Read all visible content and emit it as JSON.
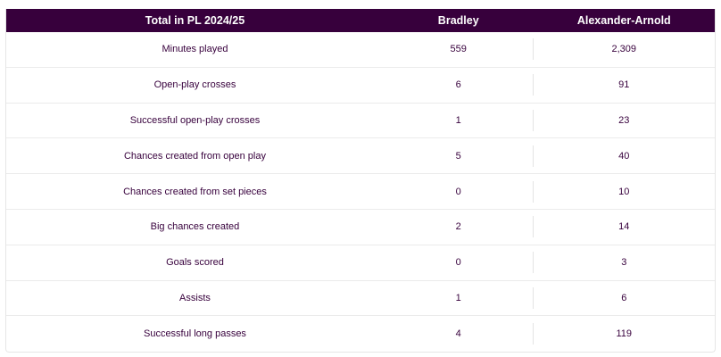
{
  "table": {
    "headers": {
      "stat": "Total in PL 2024/25",
      "player_a": "Bradley",
      "player_b": "Alexander-Arnold"
    },
    "rows": [
      {
        "stat": "Minutes played",
        "a": "559",
        "b": "2,309"
      },
      {
        "stat": "Open-play crosses",
        "a": "6",
        "b": "91"
      },
      {
        "stat": "Successful open-play crosses",
        "a": "1",
        "b": "23"
      },
      {
        "stat": "Chances created from open play",
        "a": "5",
        "b": "40"
      },
      {
        "stat": "Chances created from set pieces",
        "a": "0",
        "b": "10"
      },
      {
        "stat": "Big chances created",
        "a": "2",
        "b": "14"
      },
      {
        "stat": "Goals scored",
        "a": "0",
        "b": "3"
      },
      {
        "stat": "Assists",
        "a": "1",
        "b": "6"
      },
      {
        "stat": "Successful long passes",
        "a": "4",
        "b": "119"
      }
    ]
  },
  "colors": {
    "header_bg": "#37003c",
    "header_text": "#ffffff",
    "body_text": "#37003c"
  }
}
